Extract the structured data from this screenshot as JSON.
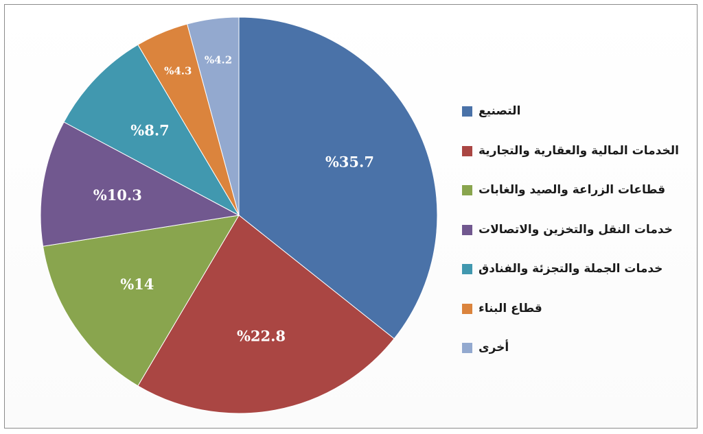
{
  "chart_data": {
    "type": "pie",
    "title": "",
    "label_format": "%{value}",
    "legend_position": "right",
    "series": [
      {
        "name": "التصنيع",
        "value": 35.7,
        "color": "#4A72A8"
      },
      {
        "name": "الخدمات المالية والعقارية والتجارية",
        "value": 22.8,
        "color": "#AA4643"
      },
      {
        "name": "قطاعات الزراعة والصيد والغابات",
        "value": 14,
        "color": "#89A54E"
      },
      {
        "name": "خدمات النقل والتخزين والاتصالات",
        "value": 10.3,
        "color": "#71588F"
      },
      {
        "name": "خدمات الجملة والتجزئة والفنادق",
        "value": 8.7,
        "color": "#4198AF"
      },
      {
        "name": "قطاع البناء",
        "value": 4.3,
        "color": "#DB843D"
      },
      {
        "name": "أخرى",
        "value": 4.2,
        "color": "#93A9CF"
      }
    ]
  }
}
